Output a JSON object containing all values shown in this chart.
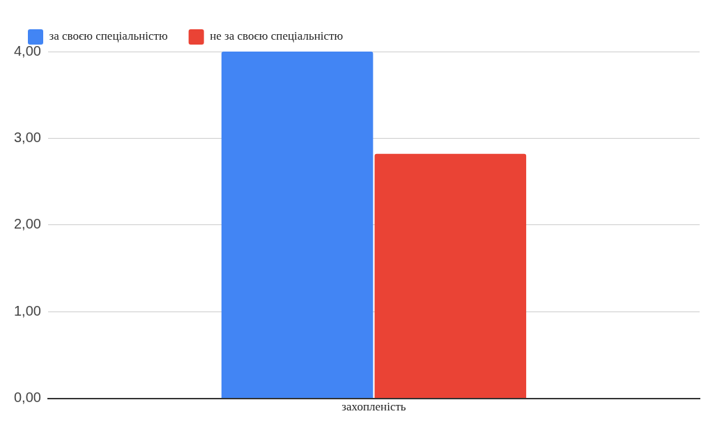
{
  "chart_data": {
    "type": "bar",
    "categories": [
      "захопленість"
    ],
    "series": [
      {
        "name": "за своєю спеціальністю",
        "color": "#4285f4",
        "values": [
          4.0
        ]
      },
      {
        "name": "не за своєю спеціальністю",
        "color": "#ea4335",
        "values": [
          2.82
        ]
      }
    ],
    "ylim": [
      0,
      4
    ],
    "yticks": [
      {
        "value": 0,
        "label": "0,00"
      },
      {
        "value": 1,
        "label": "1,00"
      },
      {
        "value": 2,
        "label": "2,00"
      },
      {
        "value": 3,
        "label": "3,00"
      },
      {
        "value": 4,
        "label": "4,00"
      }
    ],
    "grid": "y",
    "legend": "top left"
  }
}
